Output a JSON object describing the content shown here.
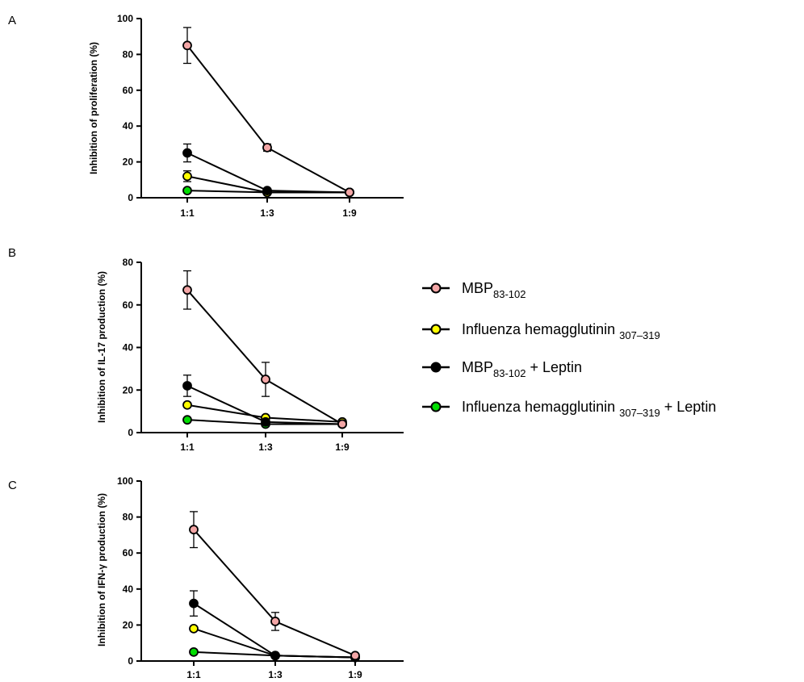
{
  "legend": {
    "items": [
      {
        "main": "MBP",
        "sub": "83-102",
        "suffix": "",
        "color": "#f4a6a6"
      },
      {
        "main": "Influenza hemagglutinin ",
        "sub": "307–319",
        "suffix": "",
        "color": "#ffff00"
      },
      {
        "main": "MBP",
        "sub": "83-102",
        "suffix": " + Leptin",
        "color": "#000000"
      },
      {
        "main": "Influenza hemagglutinin ",
        "sub": "307–319",
        "suffix": " + Leptin",
        "color": "#00dd00"
      }
    ]
  },
  "chart_data": [
    {
      "type": "line",
      "panel": "A",
      "ylabel": "Inhibition of proliferation  (%)",
      "xlabel": "",
      "categories": [
        "1:1",
        "1:3",
        "1:9"
      ],
      "ylim": [
        0,
        100
      ],
      "yticks": [
        0,
        20,
        40,
        60,
        80,
        100
      ],
      "series": [
        {
          "color": "#f4a6a6",
          "values": [
            85,
            28,
            3
          ],
          "errors": [
            10,
            2,
            0
          ]
        },
        {
          "color": "#000000",
          "values": [
            25,
            4,
            3
          ],
          "errors": [
            5,
            0,
            0
          ]
        },
        {
          "color": "#ffff00",
          "values": [
            12,
            3,
            3
          ],
          "errors": [
            3,
            0,
            0
          ]
        },
        {
          "color": "#00dd00",
          "values": [
            4,
            3,
            3
          ],
          "errors": [
            0,
            0,
            0
          ]
        }
      ]
    },
    {
      "type": "line",
      "panel": "B",
      "ylabel": "Inhibition of IL-17 production (%)",
      "xlabel": "",
      "categories": [
        "1:1",
        "1:3",
        "1:9"
      ],
      "ylim": [
        0,
        80
      ],
      "yticks": [
        0,
        20,
        40,
        60,
        80
      ],
      "series": [
        {
          "color": "#f4a6a6",
          "values": [
            67,
            25,
            4
          ],
          "errors": [
            9,
            8,
            0
          ]
        },
        {
          "color": "#000000",
          "values": [
            22,
            5,
            4
          ],
          "errors": [
            5,
            0,
            0
          ]
        },
        {
          "color": "#ffff00",
          "values": [
            13,
            7,
            5
          ],
          "errors": [
            0,
            0,
            0
          ]
        },
        {
          "color": "#00dd00",
          "values": [
            6,
            4,
            4
          ],
          "errors": [
            0,
            0,
            0
          ]
        }
      ]
    },
    {
      "type": "line",
      "panel": "C",
      "ylabel": "Inhibition of IFN-γ production (%)",
      "xlabel": "",
      "categories": [
        "1:1",
        "1:3",
        "1:9"
      ],
      "ylim": [
        0,
        100
      ],
      "yticks": [
        0,
        20,
        40,
        60,
        80,
        100
      ],
      "series": [
        {
          "color": "#f4a6a6",
          "values": [
            73,
            22,
            3
          ],
          "errors": [
            10,
            5,
            0
          ]
        },
        {
          "color": "#000000",
          "values": [
            32,
            3,
            2
          ],
          "errors": [
            7,
            0,
            0
          ]
        },
        {
          "color": "#ffff00",
          "values": [
            18,
            3,
            2
          ],
          "errors": [
            0,
            0,
            0
          ]
        },
        {
          "color": "#00dd00",
          "values": [
            5,
            3,
            2
          ],
          "errors": [
            0,
            0,
            0
          ]
        }
      ]
    }
  ]
}
